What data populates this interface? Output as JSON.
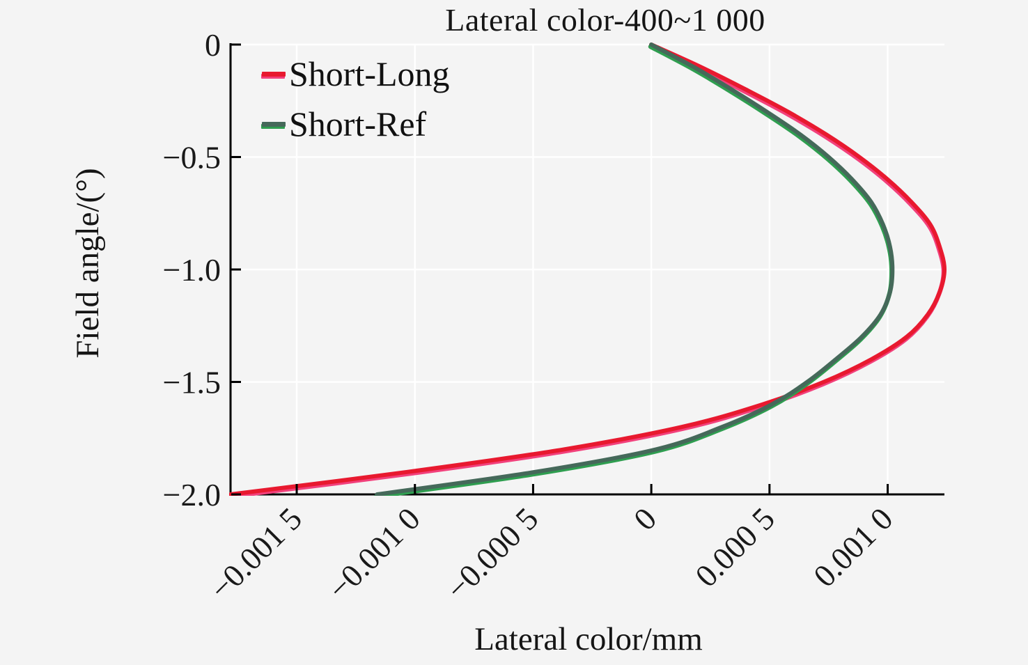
{
  "chart": {
    "title": "Lateral color-400~1 000",
    "x_axis_title": "Lateral color/mm",
    "y_axis_title": "Field angle/(°)"
  },
  "colors": {
    "background": "#f4f4f4",
    "gridline": "#ffffff",
    "axis": "#000000",
    "text": "#151515"
  },
  "chart_data": {
    "type": "line",
    "title": "Lateral color-400~1 000",
    "xlabel": "Lateral color/mm",
    "ylabel": "Field angle/(°)",
    "xlim": [
      -0.00178,
      0.00124
    ],
    "ylim": [
      -2.0,
      0
    ],
    "grid": true,
    "legend_position": "top-left-inside",
    "x_ticks": {
      "values": [
        -0.0015,
        -0.001,
        -0.0005,
        0,
        0.0005,
        0.001
      ],
      "labels": [
        "−0.001 5",
        "−0.001 0",
        "−0.000 5",
        "0",
        "0.000 5",
        "0.001 0"
      ]
    },
    "y_ticks": {
      "values": [
        0,
        -0.5,
        -1.0,
        -1.5,
        -2.0
      ],
      "labels": [
        "0",
        "−0.5",
        "−1.0",
        "−1.5",
        "−2.0"
      ]
    },
    "series": [
      {
        "name": "Short-Long",
        "color": "#e8192f",
        "halo_color": "#f2417c",
        "points": [
          [
            0,
            0
          ],
          [
            0.00021,
            -0.1
          ],
          [
            0.0004,
            -0.2
          ],
          [
            0.00058,
            -0.3
          ],
          [
            0.00074,
            -0.4
          ],
          [
            0.00088,
            -0.5
          ],
          [
            0.001,
            -0.6
          ],
          [
            0.0011,
            -0.7
          ],
          [
            0.00118,
            -0.8
          ],
          [
            0.00122,
            -0.9
          ],
          [
            0.00124,
            -1.0
          ],
          [
            0.00122,
            -1.1
          ],
          [
            0.00117,
            -1.2
          ],
          [
            0.00108,
            -1.3
          ],
          [
            0.00093,
            -1.4
          ],
          [
            0.00073,
            -1.5
          ],
          [
            0.00047,
            -1.6
          ],
          [
            0.00013,
            -1.7
          ],
          [
            -0.00037,
            -1.8
          ],
          [
            -0.00103,
            -1.9
          ],
          [
            -0.00178,
            -2.0
          ]
        ]
      },
      {
        "name": "Short-Ref",
        "color": "#45695a",
        "halo_color": "#2f9e50",
        "points": [
          [
            0,
            0
          ],
          [
            0.00018,
            -0.1
          ],
          [
            0.00034,
            -0.2
          ],
          [
            0.00049,
            -0.3
          ],
          [
            0.00063,
            -0.4
          ],
          [
            0.00075,
            -0.5
          ],
          [
            0.00085,
            -0.6
          ],
          [
            0.00093,
            -0.7
          ],
          [
            0.00098,
            -0.8
          ],
          [
            0.00101,
            -0.9
          ],
          [
            0.00102,
            -1.0
          ],
          [
            0.00101,
            -1.1
          ],
          [
            0.00097,
            -1.2
          ],
          [
            0.00089,
            -1.3
          ],
          [
            0.00078,
            -1.4
          ],
          [
            0.00066,
            -1.5
          ],
          [
            0.00051,
            -1.6
          ],
          [
            0.0003,
            -1.7
          ],
          [
            2e-05,
            -1.8
          ],
          [
            -0.00049,
            -1.9
          ],
          [
            -0.00116,
            -2.0
          ]
        ]
      }
    ]
  }
}
